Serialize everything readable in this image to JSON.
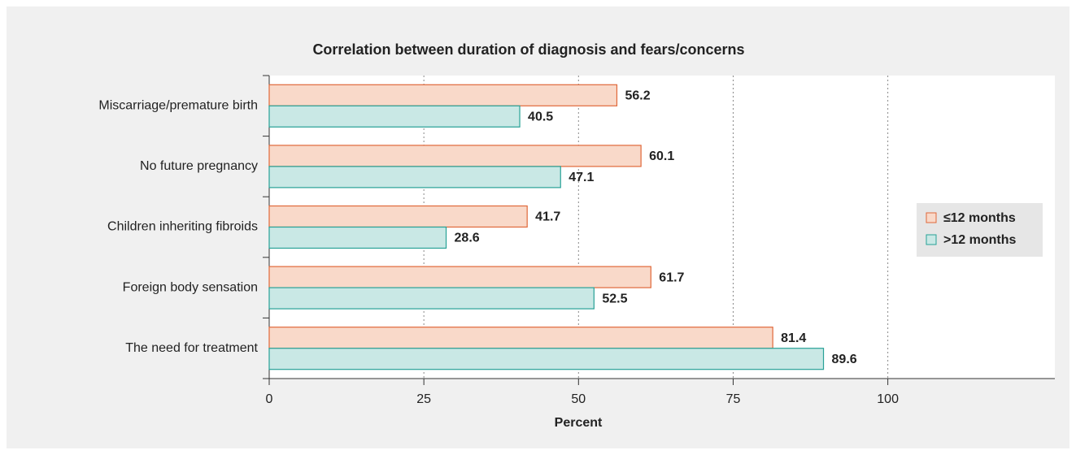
{
  "chart_data": {
    "type": "bar",
    "orientation": "horizontal",
    "title": "Correlation between duration of diagnosis and fears/concerns",
    "xlabel": "Percent",
    "categories": [
      "Miscarriage/premature birth",
      "No future pregnancy",
      "Children inheriting fibroids",
      "Foreign body sensation",
      "The need for treatment"
    ],
    "series": [
      {
        "name": "≤12 months",
        "color": "#f9d9c9",
        "edge": "#e0683a",
        "values": [
          56.2,
          60.1,
          41.7,
          61.7,
          81.4
        ]
      },
      {
        "name": ">12 months",
        "color": "#c9e8e5",
        "edge": "#27a196",
        "values": [
          40.5,
          47.1,
          28.6,
          52.5,
          89.6
        ]
      }
    ],
    "xlim": [
      0,
      127
    ],
    "xticks": [
      0,
      25,
      50,
      75,
      100
    ],
    "grid": true,
    "legend": "right"
  }
}
